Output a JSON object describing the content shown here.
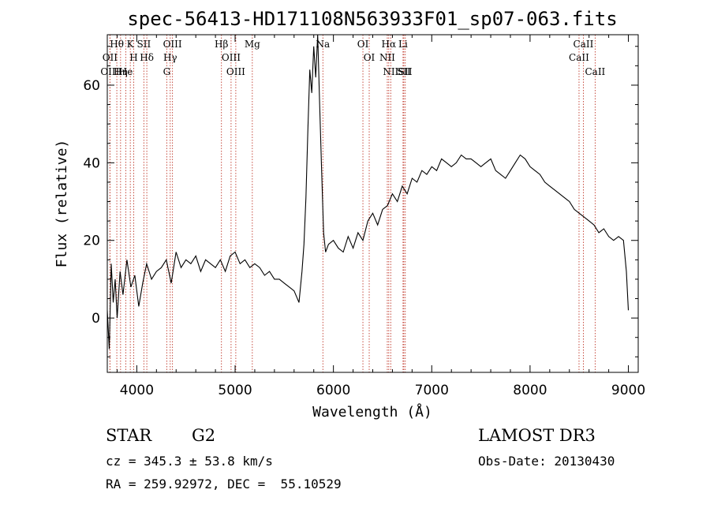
{
  "chart_data": {
    "type": "line",
    "title": "spec-56413-HD171108N563933F01_sp07-063.fits",
    "xlabel": "Wavelength (Å)",
    "ylabel": "Flux (relative)",
    "xlim": [
      3700,
      9100
    ],
    "ylim": [
      -14,
      73
    ],
    "xticks": [
      4000,
      5000,
      6000,
      7000,
      8000,
      9000
    ],
    "yticks": [
      0,
      20,
      40,
      60
    ],
    "grid": false,
    "line_color": "#000000",
    "marker_color": "#c0392b",
    "series": [
      {
        "name": "spectrum",
        "x": [
          3700,
          3720,
          3740,
          3760,
          3780,
          3800,
          3830,
          3860,
          3900,
          3940,
          3980,
          4020,
          4060,
          4100,
          4150,
          4200,
          4250,
          4300,
          4350,
          4400,
          4450,
          4500,
          4550,
          4600,
          4650,
          4700,
          4750,
          4800,
          4850,
          4900,
          4950,
          5000,
          5050,
          5100,
          5150,
          5200,
          5250,
          5300,
          5350,
          5400,
          5450,
          5500,
          5550,
          5600,
          5650,
          5680,
          5700,
          5720,
          5740,
          5760,
          5780,
          5800,
          5820,
          5840,
          5860,
          5880,
          5900,
          5920,
          5950,
          6000,
          6050,
          6100,
          6150,
          6200,
          6250,
          6300,
          6350,
          6400,
          6450,
          6500,
          6550,
          6600,
          6650,
          6700,
          6750,
          6800,
          6850,
          6900,
          6950,
          7000,
          7050,
          7100,
          7150,
          7200,
          7250,
          7300,
          7350,
          7400,
          7450,
          7500,
          7550,
          7600,
          7650,
          7700,
          7750,
          7800,
          7850,
          7900,
          7950,
          8000,
          8050,
          8100,
          8150,
          8200,
          8250,
          8300,
          8350,
          8400,
          8450,
          8500,
          8550,
          8600,
          8650,
          8700,
          8750,
          8800,
          8850,
          8900,
          8950,
          8980,
          9000
        ],
        "values": [
          2,
          -8,
          14,
          4,
          10,
          0,
          12,
          6,
          15,
          8,
          11,
          3,
          9,
          14,
          10,
          12,
          13,
          15,
          9,
          17,
          13,
          15,
          14,
          16,
          12,
          15,
          14,
          13,
          15,
          12,
          16,
          17,
          14,
          15,
          13,
          14,
          13,
          11,
          12,
          10,
          10,
          9,
          8,
          7,
          4,
          12,
          19,
          31,
          48,
          64,
          58,
          70,
          62,
          73,
          55,
          38,
          22,
          17,
          19,
          20,
          18,
          17,
          21,
          18,
          22,
          20,
          25,
          27,
          24,
          28,
          29,
          32,
          30,
          34,
          32,
          36,
          35,
          38,
          37,
          39,
          38,
          41,
          40,
          39,
          40,
          42,
          41,
          41,
          40,
          39,
          40,
          41,
          38,
          37,
          36,
          38,
          40,
          42,
          41,
          39,
          38,
          37,
          35,
          34,
          33,
          32,
          31,
          30,
          28,
          27,
          26,
          25,
          24,
          22,
          23,
          21,
          20,
          21,
          20,
          12,
          2
        ]
      }
    ],
    "lines": [
      {
        "name": "Hθ",
        "x": 3797
      },
      {
        "name": "OII",
        "x": 3727
      },
      {
        "name": "OIII",
        "x": 3727
      },
      {
        "name": "He",
        "x": 3889
      },
      {
        "name": "Hη",
        "x": 3835
      },
      {
        "name": "K",
        "x": 3934
      },
      {
        "name": "H",
        "x": 3969
      },
      {
        "name": "SII",
        "x": 4072
      },
      {
        "name": "Hδ",
        "x": 4102
      },
      {
        "name": "OIII",
        "x": 4363
      },
      {
        "name": "Hγ",
        "x": 4340
      },
      {
        "name": "G",
        "x": 4305
      },
      {
        "name": "Hβ",
        "x": 4861
      },
      {
        "name": "OIII",
        "x": 4959
      },
      {
        "name": "OIII",
        "x": 5007
      },
      {
        "name": "Mg",
        "x": 5175
      },
      {
        "name": "Na",
        "x": 5893
      },
      {
        "name": "OI",
        "x": 6300
      },
      {
        "name": "OI",
        "x": 6364
      },
      {
        "name": "Hα",
        "x": 6563
      },
      {
        "name": "NII",
        "x": 6548
      },
      {
        "name": "NII",
        "x": 6583
      },
      {
        "name": "SII",
        "x": 6716
      },
      {
        "name": "Li",
        "x": 6708
      },
      {
        "name": "SII",
        "x": 6731
      },
      {
        "name": "CaII",
        "x": 8542
      },
      {
        "name": "CaII",
        "x": 8498
      },
      {
        "name": "CaII",
        "x": 8662
      }
    ]
  },
  "info": {
    "class_label": "STAR",
    "subclass": "G2",
    "survey": "LAMOST DR3",
    "cz": "cz = 345.3 ± 53.8 km/s",
    "obs_date": "Obs-Date: 20130430",
    "coords": "RA = 259.92972, DEC =  55.10529"
  }
}
